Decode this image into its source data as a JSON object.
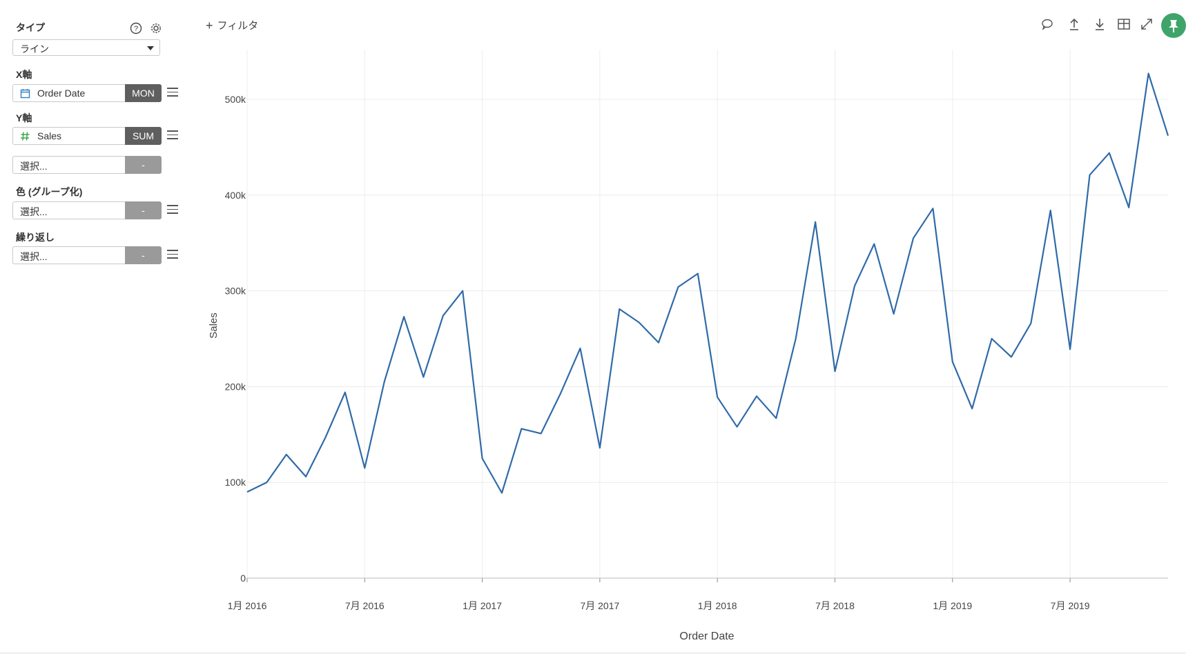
{
  "sidebar": {
    "type_label": "タイプ",
    "type_value": "ライン",
    "x_label": "X軸",
    "x_field": "Order Date",
    "x_agg": "MON",
    "y_label": "Y軸",
    "y_field": "Sales",
    "y_agg": "SUM",
    "y2_placeholder": "選択...",
    "y2_agg": "-",
    "color_label": "色 (グループ化)",
    "color_placeholder": "選択...",
    "color_agg": "-",
    "repeat_label": "繰り返し",
    "repeat_placeholder": "選択...",
    "repeat_agg": "-"
  },
  "toolbar": {
    "filter_plus": "+",
    "filter_label": "フィルタ",
    "icons": [
      "comment-icon",
      "upload-icon",
      "download-icon",
      "table-icon",
      "expand-icon",
      "pin-icon"
    ]
  },
  "colors": {
    "line": "#2f6aa8",
    "pin": "#3fa46a",
    "agg_active": "#5f5f5f",
    "agg_inactive": "#9a9a9a"
  },
  "chart_data": {
    "type": "line",
    "xlabel": "Order Date",
    "ylabel": "Sales",
    "ylim": [
      0,
      550000
    ],
    "y_ticks": [
      0,
      100000,
      200000,
      300000,
      400000,
      500000
    ],
    "y_tick_labels": [
      "0",
      "100k",
      "200k",
      "300k",
      "400k",
      "500k"
    ],
    "x_tick_labels": [
      "1月 2016",
      "7月 2016",
      "1月 2017",
      "7月 2017",
      "1月 2018",
      "7月 2018",
      "1月 2019",
      "7月 2019"
    ],
    "grid": true,
    "series": [
      {
        "x": [
          "2016-01",
          "2016-02",
          "2016-03",
          "2016-04",
          "2016-05",
          "2016-06",
          "2016-07",
          "2016-08",
          "2016-09",
          "2016-10",
          "2016-11",
          "2016-12",
          "2017-01",
          "2017-02",
          "2017-03",
          "2017-04",
          "2017-05",
          "2017-06",
          "2017-07",
          "2017-08",
          "2017-09",
          "2017-10",
          "2017-11",
          "2017-12",
          "2018-01",
          "2018-02",
          "2018-03",
          "2018-04",
          "2018-05",
          "2018-06",
          "2018-07",
          "2018-08",
          "2018-09",
          "2018-10",
          "2018-11",
          "2018-12",
          "2019-01",
          "2019-02",
          "2019-03",
          "2019-04",
          "2019-05",
          "2019-06",
          "2019-07",
          "2019-08",
          "2019-09",
          "2019-10",
          "2019-11",
          "2019-12"
        ],
        "values": [
          90000,
          100000,
          129000,
          106000,
          147000,
          194000,
          115000,
          205000,
          273000,
          210000,
          274000,
          300000,
          125000,
          89000,
          156000,
          151000,
          193000,
          240000,
          136000,
          281000,
          267000,
          246000,
          304000,
          318000,
          189000,
          158000,
          190000,
          167000,
          250000,
          372000,
          216000,
          305000,
          349000,
          276000,
          355000,
          386000,
          226000,
          177000,
          250000,
          231000,
          266000,
          384000,
          239000,
          421000,
          444000,
          387000,
          527000,
          462000
        ]
      }
    ]
  }
}
